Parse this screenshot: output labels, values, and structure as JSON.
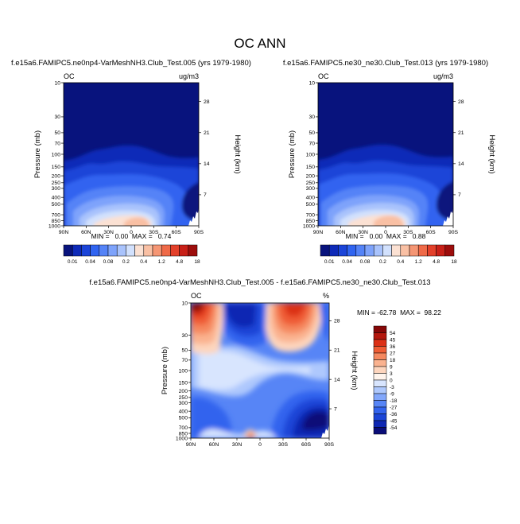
{
  "page": {
    "title": "OC ANN"
  },
  "palettes": {
    "abs": [
      "#08137d",
      "#0e2ab8",
      "#1b44d8",
      "#3064f0",
      "#5483f7",
      "#7ea3fb",
      "#a9c3fc",
      "#d2e1fd",
      "#fbe1d3",
      "#f9c0a4",
      "#f59674",
      "#ef6a48",
      "#e3402a",
      "#c82018",
      "#9d0d0c"
    ],
    "diff": [
      "#0a0d78",
      "#0e27b3",
      "#1b45d7",
      "#3364ee",
      "#5785f6",
      "#82a7fb",
      "#aec8fd",
      "#d8e5fe",
      "#fff4ec",
      "#fdd5bd",
      "#fab28f",
      "#f5885f",
      "#ef5c34",
      "#dc3016",
      "#b4170d",
      "#860707"
    ]
  },
  "chart_data": [
    {
      "type": "heatmap",
      "title": "f.e15a6.FAMIPC5.ne0np4-VarMeshNH3.Club_Test.005 (yrs 1979-1980)",
      "left_label": "OC",
      "right_label": "ug/m3",
      "xlabel": "",
      "ylabel": "Pressure (mb)",
      "y2label": "Height (km)",
      "x_ticks": [
        "90N",
        "60N",
        "30N",
        "0",
        "30S",
        "60S",
        "90S"
      ],
      "y_ticks": [
        "10",
        "30",
        "50",
        "70",
        "100",
        "150",
        "200",
        "250",
        "300",
        "400",
        "500",
        "700",
        "850",
        "1000"
      ],
      "y2_ticks": [
        "28",
        "21",
        "14",
        "7"
      ],
      "xlim": [
        90,
        -90
      ],
      "ylim": [
        1000,
        10
      ],
      "stats": "MIN =   0.00  MAX =   0.74",
      "colorbar_labels": [
        "0.01",
        "0.04",
        "0.08",
        "0.2",
        "0.4",
        "1.2",
        "4.8",
        "18"
      ],
      "colorbar_orientation": "horizontal"
    },
    {
      "type": "heatmap",
      "title": "f.e15a6.FAMIPC5.ne30_ne30.Club_Test.013 (yrs 1979-1980)",
      "left_label": "OC",
      "right_label": "ug/m3",
      "xlabel": "",
      "ylabel": "Pressure (mb)",
      "y2label": "Height (km)",
      "x_ticks": [
        "90N",
        "60N",
        "30N",
        "0",
        "30S",
        "60S",
        "90S"
      ],
      "y_ticks": [
        "10",
        "30",
        "50",
        "70",
        "100",
        "150",
        "200",
        "250",
        "300",
        "400",
        "500",
        "700",
        "850",
        "1000"
      ],
      "y2_ticks": [
        "28",
        "21",
        "14",
        "7"
      ],
      "xlim": [
        90,
        -90
      ],
      "ylim": [
        1000,
        10
      ],
      "stats": "MIN =   0.00  MAX =   0.88",
      "colorbar_labels": [
        "0.01",
        "0.04",
        "0.08",
        "0.2",
        "0.4",
        "1.2",
        "4.8",
        "18"
      ],
      "colorbar_orientation": "horizontal"
    },
    {
      "type": "heatmap",
      "title": "f.e15a6.FAMIPC5.ne0np4-VarMeshNH3.Club_Test.005 - f.e15a6.FAMIPC5.ne30_ne30.Club_Test.013",
      "left_label": "OC",
      "right_label": "%",
      "xlabel": "",
      "ylabel": "Pressure (mb)",
      "y2label": "Height (km)",
      "x_ticks": [
        "90N",
        "60N",
        "30N",
        "0",
        "30S",
        "60S",
        "90S"
      ],
      "y_ticks": [
        "10",
        "30",
        "50",
        "70",
        "100",
        "150",
        "200",
        "250",
        "300",
        "400",
        "500",
        "700",
        "850",
        "1000"
      ],
      "y2_ticks": [
        "28",
        "21",
        "14",
        "7"
      ],
      "xlim": [
        90,
        -90
      ],
      "ylim": [
        1000,
        10
      ],
      "stats": "MIN = -62.78  MAX =  98.22",
      "colorbar_labels": [
        "54",
        "45",
        "36",
        "27",
        "18",
        "9",
        "3",
        "0",
        "-3",
        "-9",
        "-18",
        "-27",
        "-36",
        "-45",
        "-54"
      ],
      "colorbar_orientation": "vertical"
    }
  ]
}
